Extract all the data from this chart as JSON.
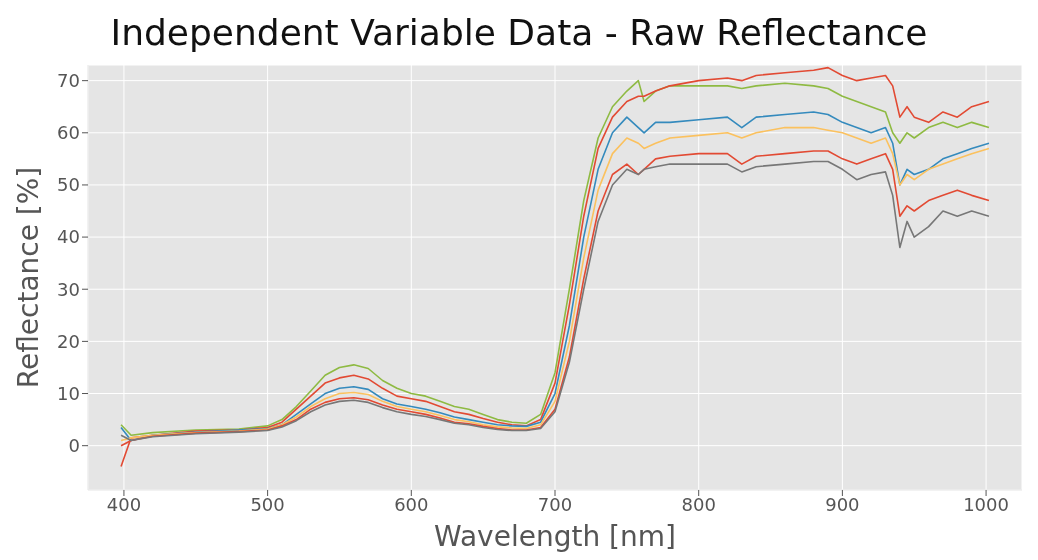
{
  "chart_data": {
    "type": "line",
    "title": "Independent Variable Data - Raw Reflectance",
    "xlabel": "Wavelength [nm]",
    "ylabel": "Reflectance [%]",
    "x": [
      398,
      405,
      420,
      450,
      480,
      500,
      510,
      520,
      530,
      540,
      550,
      560,
      570,
      580,
      590,
      600,
      610,
      620,
      630,
      640,
      650,
      660,
      670,
      680,
      690,
      700,
      710,
      720,
      730,
      740,
      750,
      758,
      762,
      770,
      780,
      800,
      820,
      830,
      840,
      860,
      880,
      890,
      900,
      910,
      920,
      930,
      935,
      940,
      945,
      950,
      960,
      970,
      980,
      990,
      1002
    ],
    "series": [
      {
        "color": "#8eba42",
        "values": [
          4,
          2,
          2.5,
          3,
          3.2,
          3.8,
          5,
          7.5,
          10.5,
          13.5,
          15,
          15.5,
          14.8,
          12.5,
          11,
          10,
          9.5,
          8.5,
          7.5,
          7,
          6,
          5,
          4.5,
          4.3,
          6,
          14,
          30,
          47,
          59,
          65,
          68,
          70,
          66,
          68,
          69,
          69,
          69,
          68.5,
          69,
          69.5,
          69,
          68.5,
          67,
          66,
          65,
          64,
          60,
          58,
          60,
          59,
          61,
          62,
          61,
          62,
          61
        ]
      },
      {
        "color": "#e24a33",
        "values": [
          -4,
          1.5,
          2,
          2.8,
          3,
          3.5,
          4.5,
          7,
          9.5,
          12,
          13,
          13.5,
          12.8,
          11,
          9.5,
          9,
          8.5,
          7.5,
          6.5,
          6,
          5.2,
          4.5,
          4,
          3.8,
          5,
          12,
          27,
          44,
          57,
          63,
          66,
          67,
          67,
          68,
          69,
          70,
          70.5,
          70,
          71,
          71.5,
          72,
          72.5,
          71,
          70,
          70.5,
          71,
          69,
          63,
          65,
          63,
          62,
          64,
          63,
          65,
          66
        ]
      },
      {
        "color": "#348abd",
        "values": [
          3.5,
          1,
          2,
          2.6,
          3,
          3.3,
          4,
          6,
          8,
          10,
          11,
          11.3,
          10.8,
          9,
          8,
          7.5,
          7,
          6.3,
          5.5,
          5,
          4.5,
          4,
          3.8,
          3.7,
          4.5,
          10,
          23,
          40,
          53,
          60,
          63,
          61,
          60,
          62,
          62,
          62.5,
          63,
          61,
          63,
          63.5,
          64,
          63.5,
          62,
          61,
          60,
          61,
          58,
          50,
          53,
          52,
          53,
          55,
          56,
          57,
          58
        ]
      },
      {
        "color": "#fbc15e",
        "values": [
          1,
          1.5,
          2,
          2.5,
          2.8,
          3.2,
          4,
          5.5,
          7.5,
          9,
          10,
          10.2,
          9.8,
          8.5,
          7.5,
          7,
          6.5,
          5.8,
          5,
          4.6,
          4,
          3.6,
          3.4,
          3.3,
          4,
          8.5,
          20,
          36,
          49,
          56,
          59,
          58,
          57,
          58,
          59,
          59.5,
          60,
          59,
          60,
          61,
          61,
          60.5,
          60,
          59,
          58,
          59,
          56,
          50,
          52,
          51,
          53,
          54,
          55,
          56,
          57
        ]
      },
      {
        "color": "#e24a33",
        "values": [
          0,
          1,
          1.8,
          2.4,
          2.7,
          3,
          3.8,
          5,
          7,
          8.3,
          9,
          9.2,
          8.8,
          7.8,
          7,
          6.5,
          6,
          5.3,
          4.5,
          4.2,
          3.7,
          3.3,
          3,
          3,
          3.5,
          7,
          17,
          32,
          45,
          52,
          54,
          52,
          53,
          55,
          55.5,
          56,
          56,
          54,
          55.5,
          56,
          56.5,
          56.5,
          55,
          54,
          55,
          56,
          53,
          44,
          46,
          45,
          47,
          48,
          49,
          48,
          47
        ]
      },
      {
        "color": "#777777",
        "values": [
          2,
          1,
          1.7,
          2.3,
          2.6,
          2.9,
          3.6,
          4.8,
          6.5,
          7.8,
          8.5,
          8.7,
          8.3,
          7.3,
          6.5,
          6,
          5.6,
          5,
          4.3,
          4,
          3.5,
          3.1,
          2.9,
          2.9,
          3.3,
          6.5,
          16,
          30,
          43,
          50,
          53,
          52,
          53,
          53.5,
          54,
          54,
          54,
          52.5,
          53.5,
          54,
          54.5,
          54.5,
          53,
          51,
          52,
          52.5,
          48,
          38,
          43,
          40,
          42,
          45,
          44,
          45,
          44
        ]
      }
    ],
    "xlim": [
      375,
      1025
    ],
    "xticks": [
      400,
      500,
      600,
      700,
      800,
      900,
      1000
    ],
    "ylim": [
      -8.5,
      73
    ],
    "yticks": [
      0,
      10,
      20,
      30,
      40,
      50,
      60,
      70
    ],
    "grid": true
  }
}
